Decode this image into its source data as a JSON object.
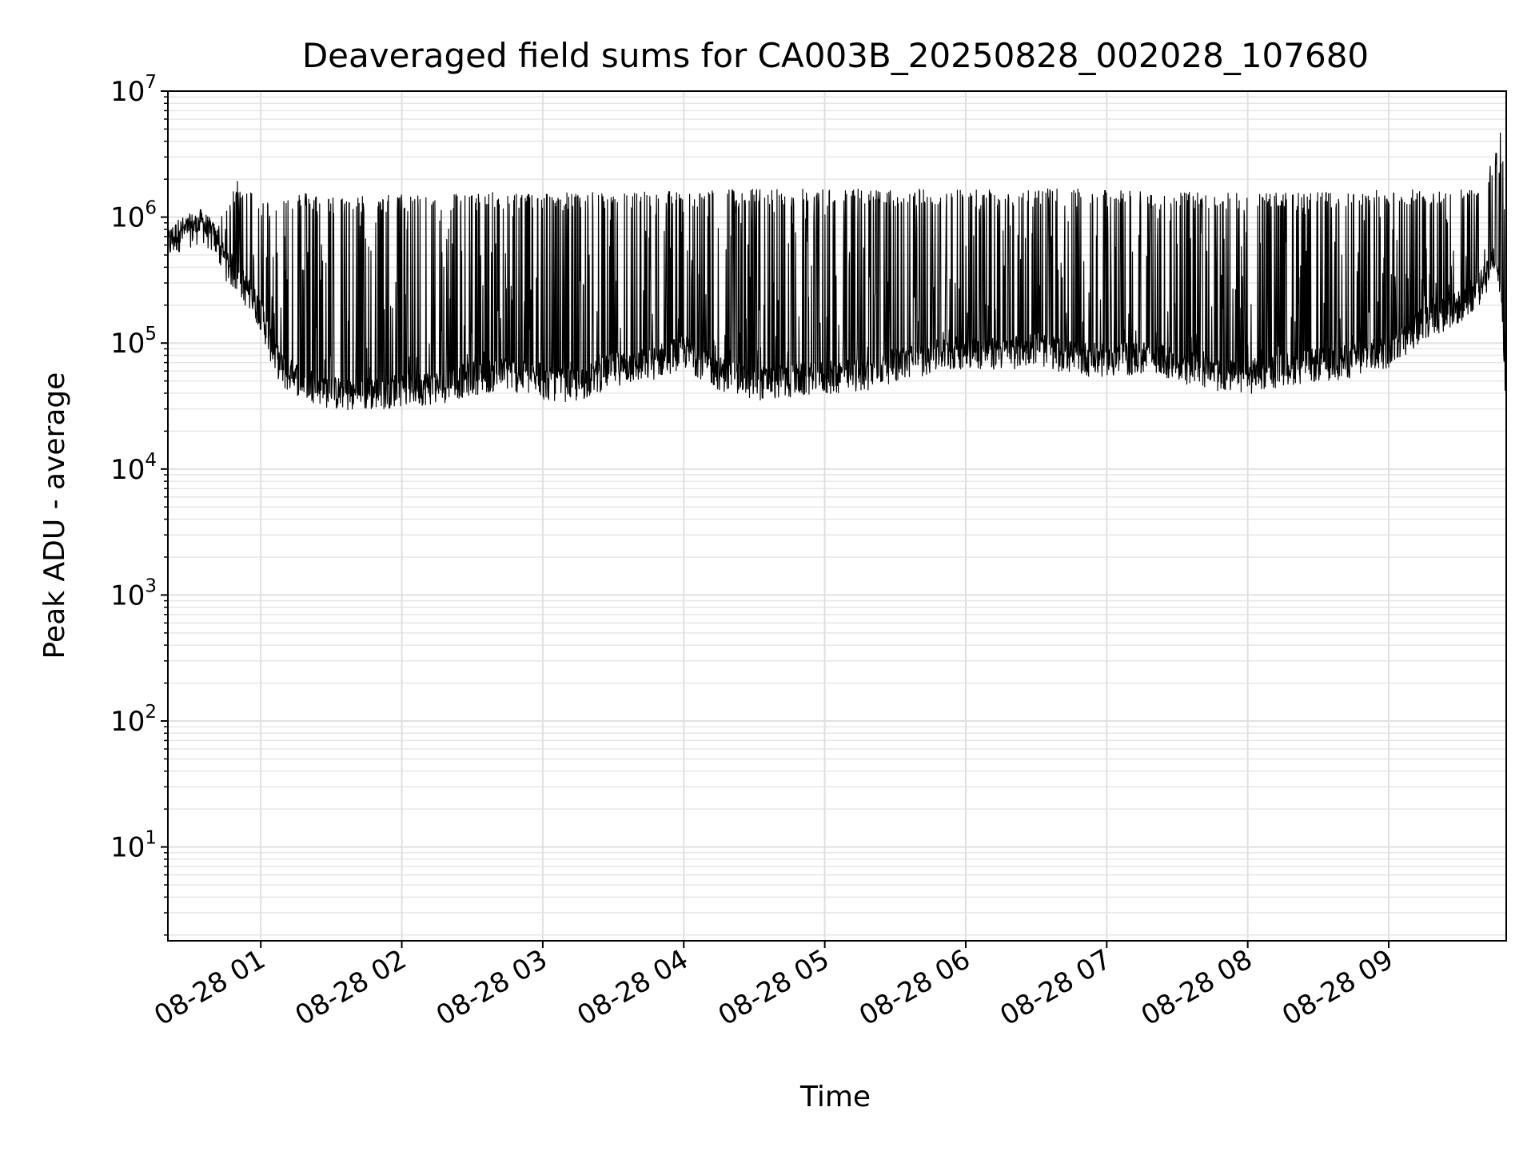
{
  "chart_data": {
    "type": "line",
    "title": "Deaveraged field sums for CA003B_20250828_002028_107680",
    "xlabel": "Time",
    "ylabel": "Peak ADU - average",
    "yscale": "log",
    "ylim": [
      1.8,
      10000000
    ],
    "xlim": [
      "2025-08-28 00:20:28",
      "2025-08-28 09:50:00"
    ],
    "grid": true,
    "legend": false,
    "line_color": "#000000",
    "x_ticks": [
      {
        "time": "2025-08-28 01:00",
        "label": "08-28 01"
      },
      {
        "time": "2025-08-28 02:00",
        "label": "08-28 02"
      },
      {
        "time": "2025-08-28 03:00",
        "label": "08-28 03"
      },
      {
        "time": "2025-08-28 04:00",
        "label": "08-28 04"
      },
      {
        "time": "2025-08-28 05:00",
        "label": "08-28 05"
      },
      {
        "time": "2025-08-28 06:00",
        "label": "08-28 06"
      },
      {
        "time": "2025-08-28 07:00",
        "label": "08-28 07"
      },
      {
        "time": "2025-08-28 08:00",
        "label": "08-28 08"
      },
      {
        "time": "2025-08-28 09:00",
        "label": "08-28 09"
      }
    ],
    "y_ticks": [
      {
        "value": 10,
        "base": "10",
        "exp": "1"
      },
      {
        "value": 100,
        "base": "10",
        "exp": "2"
      },
      {
        "value": 1000,
        "base": "10",
        "exp": "3"
      },
      {
        "value": 10000,
        "base": "10",
        "exp": "4"
      },
      {
        "value": 100000,
        "base": "10",
        "exp": "5"
      },
      {
        "value": 1000000,
        "base": "10",
        "exp": "6"
      },
      {
        "value": 10000000,
        "base": "10",
        "exp": "7"
      }
    ],
    "series": [
      {
        "x": [
          "2025-08-28 00:20:28",
          "2025-08-28 00:25",
          "2025-08-28 00:30",
          "2025-08-28 00:35",
          "2025-08-28 00:40",
          "2025-08-28 00:45",
          "2025-08-28 00:50",
          "2025-08-28 00:55",
          "2025-08-28 01:00",
          "2025-08-28 01:05",
          "2025-08-28 01:10",
          "2025-08-28 01:15",
          "2025-08-28 01:20",
          "2025-08-28 01:30",
          "2025-08-28 01:40",
          "2025-08-28 01:50",
          "2025-08-28 02:00",
          "2025-08-28 02:15",
          "2025-08-28 02:30",
          "2025-08-28 02:45",
          "2025-08-28 03:00",
          "2025-08-28 03:15",
          "2025-08-28 03:30",
          "2025-08-28 03:45",
          "2025-08-28 04:00",
          "2025-08-28 04:15",
          "2025-08-28 04:30",
          "2025-08-28 04:45",
          "2025-08-28 05:00",
          "2025-08-28 05:15",
          "2025-08-28 05:30",
          "2025-08-28 05:45",
          "2025-08-28 06:00",
          "2025-08-28 06:15",
          "2025-08-28 06:30",
          "2025-08-28 06:45",
          "2025-08-28 07:00",
          "2025-08-28 07:15",
          "2025-08-28 07:30",
          "2025-08-28 07:45",
          "2025-08-28 08:00",
          "2025-08-28 08:15",
          "2025-08-28 08:30",
          "2025-08-28 08:45",
          "2025-08-28 09:00",
          "2025-08-28 09:15",
          "2025-08-28 09:30",
          "2025-08-28 09:40",
          "2025-08-28 09:45",
          "2025-08-28 09:48",
          "2025-08-28 09:50"
        ],
        "y_baseline": [
          620000,
          750000,
          820000,
          900000,
          700000,
          450000,
          350000,
          250000,
          180000,
          90000,
          60000,
          55000,
          50000,
          42000,
          40000,
          42000,
          45000,
          46000,
          55000,
          60000,
          50000,
          48000,
          65000,
          70000,
          90000,
          60000,
          50000,
          52000,
          55000,
          58000,
          70000,
          80000,
          90000,
          85000,
          95000,
          80000,
          75000,
          80000,
          70000,
          60000,
          55000,
          65000,
          70000,
          75000,
          90000,
          150000,
          200000,
          300000,
          500000,
          300000,
          30000
        ],
        "y_peak": [
          800000,
          820000,
          950000,
          1000000,
          900000,
          1000000,
          2000000,
          1600000,
          1300000,
          1300000,
          1400000,
          1500000,
          1500000,
          1400000,
          1400000,
          1450000,
          1450000,
          1500000,
          1500000,
          1500000,
          1500000,
          1500000,
          1500000,
          1550000,
          1550000,
          1600000,
          1600000,
          1600000,
          1600000,
          1600000,
          1600000,
          1600000,
          1600000,
          1600000,
          1600000,
          1600000,
          1550000,
          1550000,
          1500000,
          1500000,
          1500000,
          1500000,
          1500000,
          1500000,
          1600000,
          1600000,
          1600000,
          1700000,
          3000000,
          5500000,
          500000
        ]
      }
    ]
  }
}
